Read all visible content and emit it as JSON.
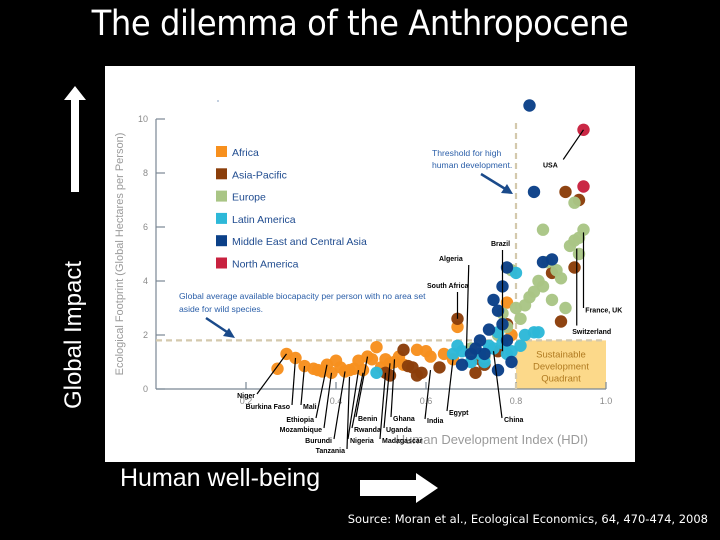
{
  "slide": {
    "title": "The dilemma of the Anthropocene",
    "vertical_label": "Global Impact",
    "horizontal_label": "Human well-being",
    "source": "Source: Moran et al., Ecological Economics, 64, 470-474, 2008",
    "icons": [
      "arrow-up-icon",
      "arrow-right-icon"
    ]
  },
  "chart_data": {
    "type": "scatter",
    "title": "",
    "xlabel": "Human Development Index (HDI)",
    "ylabel": "Ecological Footprint (Global Hectares per Person)",
    "xlim": [
      0,
      1.0
    ],
    "ylim": [
      0,
      10
    ],
    "xticks": [
      "0.2",
      "0.4",
      "0.6",
      "0.8",
      "1.0"
    ],
    "yticks": [
      "0",
      "2",
      "4",
      "6",
      "8",
      "10"
    ],
    "grid": false,
    "legend_position": "upper-left",
    "legend": [
      {
        "name": "Africa",
        "color": "#F7901E"
      },
      {
        "name": "Asia-Pacific",
        "color": "#8B3E0A"
      },
      {
        "name": "Europe",
        "color": "#A9C585"
      },
      {
        "name": "Latin America",
        "color": "#2DB8D8"
      },
      {
        "name": "Middle East and Central Asia",
        "color": "#0B4088"
      },
      {
        "name": "North America",
        "color": "#C8213F"
      }
    ],
    "reference_lines": [
      {
        "type": "horizontal",
        "y": 1.8,
        "label": "Global average available biocapacity per person with no area set aside for wild species."
      },
      {
        "type": "vertical",
        "x": 0.8,
        "label": "Threshold for high human development."
      }
    ],
    "region": {
      "label": "Sustainable Development Quadrant",
      "x": [
        0.8,
        1.0
      ],
      "y": [
        0,
        1.8
      ],
      "color": "#FCD98A"
    },
    "series": [
      {
        "name": "Africa",
        "color": "#F7901E",
        "points": [
          [
            0.27,
            0.75
          ],
          [
            0.29,
            1.3
          ],
          [
            0.31,
            1.15
          ],
          [
            0.33,
            0.85
          ],
          [
            0.35,
            0.75
          ],
          [
            0.36,
            0.7
          ],
          [
            0.37,
            0.65
          ],
          [
            0.38,
            0.9
          ],
          [
            0.39,
            0.6
          ],
          [
            0.4,
            1.05
          ],
          [
            0.41,
            0.8
          ],
          [
            0.42,
            0.65
          ],
          [
            0.43,
            0.7
          ],
          [
            0.44,
            0.75
          ],
          [
            0.45,
            1.05
          ],
          [
            0.46,
            0.7
          ],
          [
            0.47,
            1.2
          ],
          [
            0.48,
            1.1
          ],
          [
            0.49,
            1.55
          ],
          [
            0.5,
            0.8
          ],
          [
            0.51,
            1.1
          ],
          [
            0.52,
            0.95
          ],
          [
            0.53,
            1.0
          ],
          [
            0.54,
            1.2
          ],
          [
            0.55,
            0.9
          ],
          [
            0.58,
            1.45
          ],
          [
            0.6,
            1.4
          ],
          [
            0.61,
            1.2
          ],
          [
            0.64,
            1.3
          ],
          [
            0.66,
            1.1
          ],
          [
            0.67,
            2.3
          ],
          [
            0.72,
            1.2
          ],
          [
            0.79,
            2.0
          ],
          [
            0.78,
            3.2
          ]
        ]
      },
      {
        "name": "Asia-Pacific",
        "color": "#8B3E0A",
        "points": [
          [
            0.51,
            0.6
          ],
          [
            0.52,
            0.5
          ],
          [
            0.55,
            1.45
          ],
          [
            0.56,
            0.85
          ],
          [
            0.57,
            0.8
          ],
          [
            0.58,
            0.5
          ],
          [
            0.59,
            0.6
          ],
          [
            0.63,
            0.8
          ],
          [
            0.67,
            2.6
          ],
          [
            0.71,
            0.6
          ],
          [
            0.72,
            1.1
          ],
          [
            0.73,
            0.9
          ],
          [
            0.76,
            1.4
          ],
          [
            0.78,
            2.4
          ],
          [
            0.88,
            4.3
          ],
          [
            0.9,
            2.5
          ],
          [
            0.91,
            7.3
          ],
          [
            0.93,
            4.5
          ],
          [
            0.94,
            7.0
          ]
        ]
      },
      {
        "name": "Europe",
        "color": "#A9C585",
        "points": [
          [
            0.7,
            1.5
          ],
          [
            0.73,
            1.2
          ],
          [
            0.76,
            2.0
          ],
          [
            0.77,
            2.8
          ],
          [
            0.78,
            2.3
          ],
          [
            0.79,
            4.4
          ],
          [
            0.8,
            3.0
          ],
          [
            0.81,
            2.6
          ],
          [
            0.82,
            3.1
          ],
          [
            0.83,
            3.4
          ],
          [
            0.84,
            3.6
          ],
          [
            0.85,
            4.0
          ],
          [
            0.86,
            5.9
          ],
          [
            0.86,
            3.8
          ],
          [
            0.87,
            4.7
          ],
          [
            0.88,
            3.3
          ],
          [
            0.89,
            4.4
          ],
          [
            0.9,
            4.1
          ],
          [
            0.91,
            3.0
          ],
          [
            0.92,
            5.3
          ],
          [
            0.93,
            5.5
          ],
          [
            0.93,
            6.9
          ],
          [
            0.94,
            5.0
          ],
          [
            0.94,
            5.6
          ],
          [
            0.95,
            5.9
          ]
        ]
      },
      {
        "name": "Latin America",
        "color": "#2DB8D8",
        "points": [
          [
            0.49,
            0.6
          ],
          [
            0.66,
            1.3
          ],
          [
            0.67,
            1.6
          ],
          [
            0.68,
            1.4
          ],
          [
            0.7,
            1.0
          ],
          [
            0.72,
            1.3
          ],
          [
            0.73,
            1.0
          ],
          [
            0.74,
            1.6
          ],
          [
            0.75,
            1.5
          ],
          [
            0.76,
            2.1
          ],
          [
            0.77,
            1.7
          ],
          [
            0.78,
            1.3
          ],
          [
            0.79,
            1.4
          ],
          [
            0.8,
            4.3
          ],
          [
            0.81,
            1.6
          ],
          [
            0.82,
            2.0
          ],
          [
            0.84,
            2.1
          ],
          [
            0.85,
            2.1
          ]
        ]
      },
      {
        "name": "Middle East and Central Asia",
        "color": "#0B4088",
        "points": [
          [
            0.68,
            0.9
          ],
          [
            0.7,
            1.3
          ],
          [
            0.71,
            1.5
          ],
          [
            0.72,
            1.8
          ],
          [
            0.73,
            1.3
          ],
          [
            0.74,
            2.2
          ],
          [
            0.75,
            3.3
          ],
          [
            0.76,
            2.9
          ],
          [
            0.77,
            3.8
          ],
          [
            0.77,
            2.4
          ],
          [
            0.78,
            4.5
          ],
          [
            0.78,
            1.8
          ],
          [
            0.76,
            0.7
          ],
          [
            0.79,
            1.0
          ],
          [
            0.83,
            10.5
          ],
          [
            0.84,
            7.3
          ],
          [
            0.86,
            4.7
          ],
          [
            0.88,
            4.8
          ]
        ]
      },
      {
        "name": "North America",
        "color": "#C8213F",
        "points": [
          [
            0.95,
            9.6
          ],
          [
            0.95,
            7.5
          ]
        ]
      }
    ],
    "annotations": [
      "Niger",
      "Burkina Faso",
      "Mali",
      "Ethiopia",
      "Mozambique",
      "Burundi",
      "Tanzania",
      "Nigeria",
      "Rwanda",
      "Benin",
      "Madagascar",
      "Uganda",
      "Ghana",
      "India",
      "Egypt",
      "South Africa",
      "Algeria",
      "Brazil",
      "China",
      "USA",
      "France, UK",
      "Switzerland"
    ]
  }
}
